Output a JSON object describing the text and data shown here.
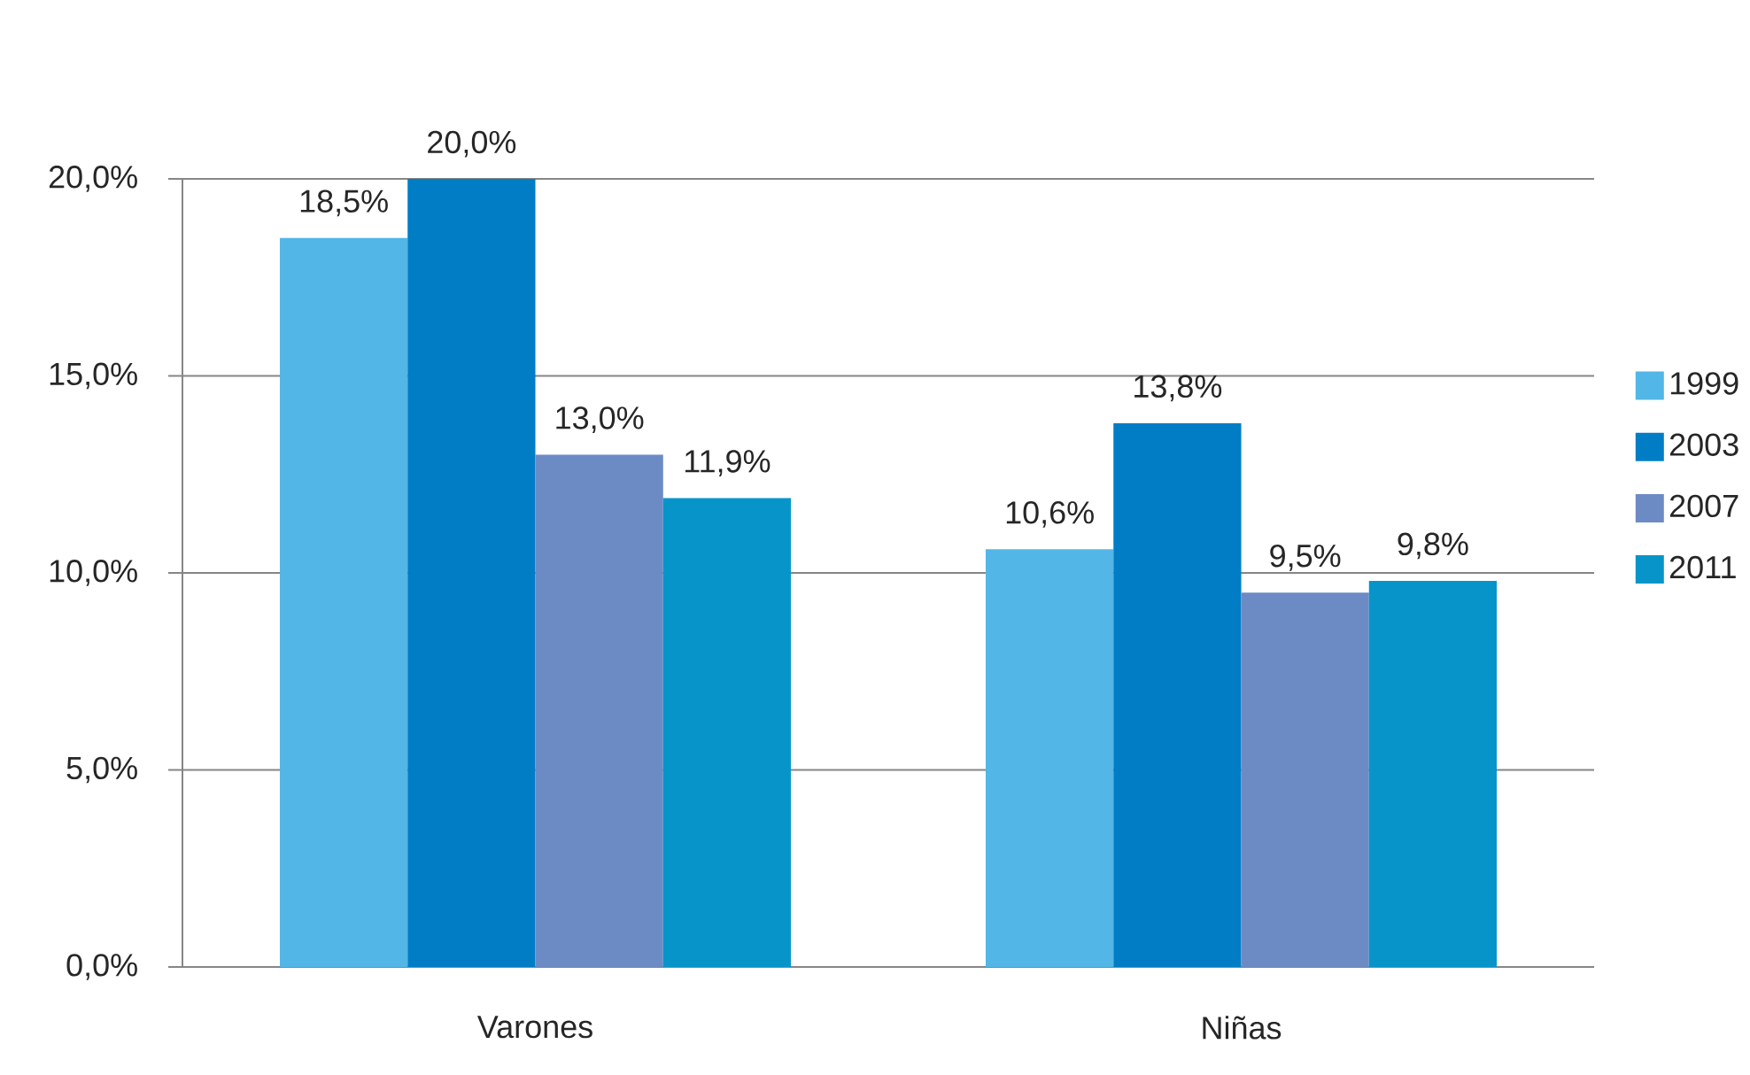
{
  "chart_data": {
    "type": "bar",
    "categories": [
      "Varones",
      "Niñas"
    ],
    "series": [
      {
        "name": "1999",
        "color": "#52b6e6",
        "values": [
          18.5,
          10.6
        ],
        "value_labels": [
          "18,5%",
          "10,6%"
        ]
      },
      {
        "name": "2003",
        "color": "#007dc5",
        "values": [
          20.0,
          13.8
        ],
        "value_labels": [
          "20,0%",
          "13,8%"
        ]
      },
      {
        "name": "2007",
        "color": "#6c8bc5",
        "values": [
          13.0,
          9.5
        ],
        "value_labels": [
          "13,0%",
          "9,5%"
        ]
      },
      {
        "name": "2011",
        "color": "#0795c9",
        "values": [
          11.9,
          9.8
        ],
        "value_labels": [
          "11,9%",
          "9,8%"
        ]
      }
    ],
    "ylim": [
      0,
      20
    ],
    "yticks": [
      {
        "value": 0,
        "label": "0,0%"
      },
      {
        "value": 5,
        "label": "5,0%"
      },
      {
        "value": 10,
        "label": "10,0%"
      },
      {
        "value": 15,
        "label": "15,0%"
      },
      {
        "value": 20,
        "label": "20,0%"
      }
    ],
    "grid": "y",
    "legend": "right"
  }
}
